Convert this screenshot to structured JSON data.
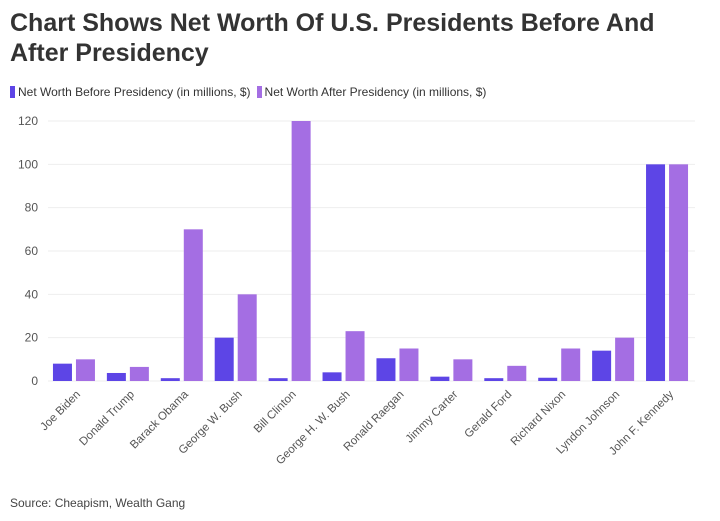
{
  "chart_data": {
    "type": "bar",
    "title": "Chart Shows Net Worth Of U.S. Presidents Before And After Presidency",
    "categories": [
      "Joe Biden",
      "Donald Trump",
      "Barack Obama",
      "George W. Bush",
      "Bill Clinton",
      "George H. W. Bush",
      "Ronald Raegan",
      "Jimmy Carter",
      "Gerald Ford",
      "Richard Nixon",
      "Lyndon Johnson",
      "John F. Kennedy"
    ],
    "series": [
      {
        "name": "Net Worth Before Presidency (in millions, $)",
        "color": "#5d45e6",
        "values": [
          8,
          3.7,
          1.3,
          20,
          1.3,
          4,
          10.5,
          2,
          1.3,
          1.5,
          14,
          100
        ]
      },
      {
        "name": "Net Worth After Presidency (in millions, $)",
        "color": "#a46ee3",
        "values": [
          10,
          6.5,
          70,
          40,
          120,
          23,
          15,
          10,
          7,
          15,
          20,
          100
        ]
      }
    ],
    "ylim": [
      0,
      120
    ],
    "yticks": [
      0,
      20,
      40,
      60,
      80,
      100,
      120
    ],
    "grid": true,
    "legend": "top-left",
    "source": "Source: Cheapism, Wealth Gang"
  }
}
